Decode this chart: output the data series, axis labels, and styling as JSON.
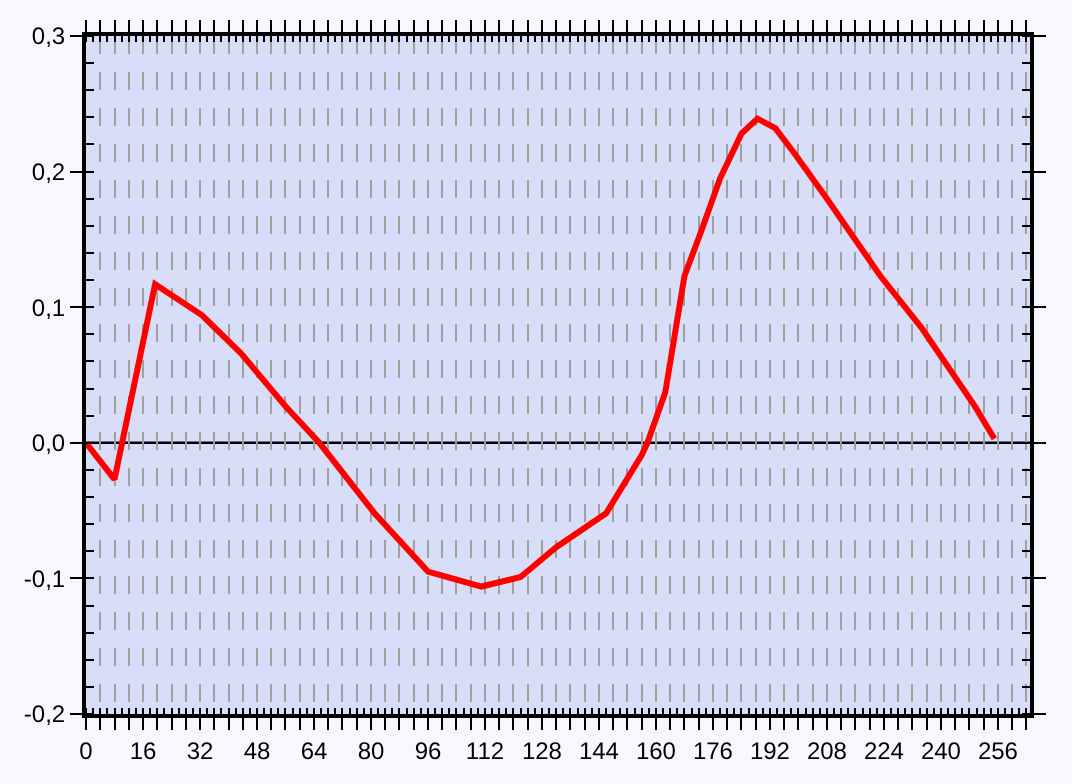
{
  "chart_data": {
    "type": "line",
    "x": [
      0,
      8,
      19.4,
      32.6,
      43.5,
      56,
      65.5,
      81,
      96,
      111,
      122,
      132,
      146,
      156,
      157.6,
      162.6,
      168,
      172.7,
      178,
      184,
      188.5,
      193.5,
      199,
      208,
      223,
      234.5,
      249.5,
      255
    ],
    "series": [
      {
        "color": "#ff0000",
        "values": [
          0.0,
          -0.027,
          0.117,
          0.094,
          0.066,
          0.027,
          0.0,
          -0.052,
          -0.095,
          -0.106,
          -0.099,
          -0.077,
          -0.052,
          -0.009,
          0.0,
          0.037,
          0.123,
          0.156,
          0.195,
          0.228,
          0.239,
          0.232,
          0.213,
          0.18,
          0.123,
          0.085,
          0.027,
          0.003
        ]
      }
    ],
    "xlim": [
      0,
      265
    ],
    "ylim": [
      -0.2,
      0.3
    ],
    "xticks": [
      0,
      {
        "value": 4,
        "label": null
      },
      {
        "value": 8,
        "label": null
      },
      {
        "value": 12,
        "label": null
      },
      16,
      {
        "value": 20,
        "label": null
      },
      {
        "value": 24,
        "label": null
      },
      {
        "value": 28,
        "label": null
      },
      32,
      {
        "value": 36,
        "label": null
      },
      {
        "value": 40,
        "label": null
      },
      {
        "value": 44,
        "label": null
      },
      48,
      {
        "value": 52,
        "label": null
      },
      {
        "value": 56,
        "label": null
      },
      {
        "value": 60,
        "label": null
      },
      64,
      {
        "value": 68,
        "label": null
      },
      {
        "value": 72,
        "label": null
      },
      {
        "value": 76,
        "label": null
      },
      80,
      {
        "value": 84,
        "label": null
      },
      {
        "value": 88,
        "label": null
      },
      {
        "value": 92,
        "label": null
      },
      96,
      {
        "value": 100,
        "label": null
      },
      {
        "value": 104,
        "label": null
      },
      {
        "value": 108,
        "label": null
      },
      112,
      {
        "value": 116,
        "label": null
      },
      {
        "value": 120,
        "label": null
      },
      {
        "value": 124,
        "label": null
      },
      128,
      {
        "value": 132,
        "label": null
      },
      {
        "value": 136,
        "label": null
      },
      {
        "value": 140,
        "label": null
      },
      144,
      {
        "value": 148,
        "label": null
      },
      {
        "value": 152,
        "label": null
      },
      {
        "value": 156,
        "label": null
      },
      160,
      {
        "value": 164,
        "label": null
      },
      {
        "value": 168,
        "label": null
      },
      {
        "value": 172,
        "label": null
      },
      176,
      {
        "value": 180,
        "label": null
      },
      {
        "value": 184,
        "label": null
      },
      {
        "value": 188,
        "label": null
      },
      192,
      {
        "value": 196,
        "label": null
      },
      {
        "value": 200,
        "label": null
      },
      {
        "value": 204,
        "label": null
      },
      208,
      {
        "value": 212,
        "label": null
      },
      {
        "value": 216,
        "label": null
      },
      {
        "value": 220,
        "label": null
      },
      224,
      {
        "value": 228,
        "label": null
      },
      {
        "value": 232,
        "label": null
      },
      {
        "value": 236,
        "label": null
      },
      240,
      {
        "value": 244,
        "label": null
      },
      {
        "value": 248,
        "label": null
      },
      {
        "value": 252,
        "label": null
      },
      256,
      {
        "value": 260,
        "label": null
      },
      {
        "value": 264,
        "label": null
      }
    ],
    "yticks": [
      {
        "value": -0.2,
        "label": "-0,2"
      },
      {
        "value": -0.1,
        "label": "-0,1"
      },
      {
        "value": 0,
        "label": "0,0"
      },
      {
        "value": 0.1,
        "label": "0,1"
      },
      {
        "value": 0.2,
        "label": "0,2"
      },
      {
        "value": 0.3,
        "label": "0,3"
      }
    ],
    "grid": "x",
    "legend": false,
    "marker": "none",
    "line_style": "solid",
    "ref_lines": [
      {
        "axis": "y",
        "value": 0,
        "color": "#000000"
      }
    ]
  }
}
